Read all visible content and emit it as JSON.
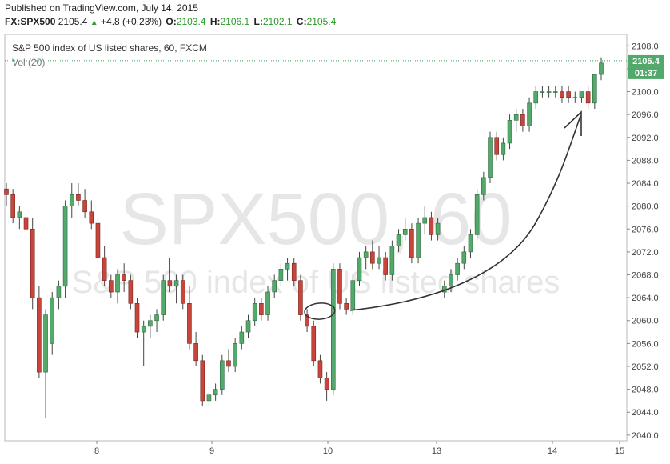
{
  "header": {
    "published": "Published on TradingView.com, July 14, 2015",
    "symbol": "FX:SPX500",
    "last": "2105.4",
    "change": "+4.8 (+0.23%)",
    "open_label": "O:",
    "open": "2103.4",
    "high_label": "H:",
    "high": "2106.1",
    "low_label": "L:",
    "low": "2102.1",
    "close_label": "C:",
    "close": "2105.4"
  },
  "legend": {
    "title": "S&P 500 index of US listed shares, 60, FXCM",
    "volume": "Vol (20)"
  },
  "watermark": {
    "big": "SPX500, 60",
    "small": "S&P 500 index of US listed shares"
  },
  "price_tag": {
    "price": "2105.4",
    "countdown": "01:37"
  },
  "colors": {
    "up": "#53a96c",
    "down": "#c8453b",
    "up_stroke": "#2d6b3f",
    "down_stroke": "#7a2620",
    "axis": "#888888",
    "last_line": "#3a9c5a"
  },
  "chart_data": {
    "type": "candlestick",
    "y_range": [
      2039,
      2110
    ],
    "y_ticks": [
      "2040.0",
      "2044.0",
      "2048.0",
      "2052.0",
      "2056.0",
      "2060.0",
      "2064.0",
      "2068.0",
      "2072.0",
      "2076.0",
      "2080.0",
      "2084.0",
      "2088.0",
      "2092.0",
      "2096.0",
      "2100.0",
      "2104.0",
      "2108.0"
    ],
    "x_ticks": [
      "8",
      "9",
      "10",
      "13",
      "14",
      "15"
    ],
    "annotations": [
      "circle-around-low",
      "curved-up-arrow"
    ],
    "candles": [
      [
        2083,
        2084,
        2080,
        2082
      ],
      [
        2082,
        2083,
        2077,
        2078
      ],
      [
        2078,
        2080,
        2076,
        2079
      ],
      [
        2078,
        2079,
        2075,
        2076
      ],
      [
        2076,
        2078,
        2062,
        2064
      ],
      [
        2064,
        2066,
        2050,
        2051
      ],
      [
        2051,
        2062,
        2043,
        2061
      ],
      [
        2056,
        2065,
        2054,
        2064
      ],
      [
        2064,
        2067,
        2062,
        2066
      ],
      [
        2066,
        2081,
        2064,
        2080
      ],
      [
        2080,
        2084,
        2078,
        2082
      ],
      [
        2082,
        2084,
        2080,
        2081
      ],
      [
        2081,
        2083,
        2078,
        2079
      ],
      [
        2079,
        2081,
        2076,
        2077
      ],
      [
        2077,
        2078,
        2070,
        2071
      ],
      [
        2071,
        2073,
        2066,
        2067
      ],
      [
        2067,
        2068,
        2064,
        2065
      ],
      [
        2065,
        2069,
        2063,
        2068
      ],
      [
        2068,
        2070,
        2065,
        2067
      ],
      [
        2067,
        2068,
        2062,
        2063
      ],
      [
        2063,
        2064,
        2057,
        2058
      ],
      [
        2058,
        2060,
        2052,
        2059
      ],
      [
        2059,
        2061,
        2057,
        2060
      ],
      [
        2060,
        2062,
        2058,
        2061
      ],
      [
        2061,
        2068,
        2060,
        2067
      ],
      [
        2067,
        2071,
        2065,
        2066
      ],
      [
        2066,
        2068,
        2063,
        2067
      ],
      [
        2067,
        2068,
        2062,
        2063
      ],
      [
        2063,
        2066,
        2055,
        2056
      ],
      [
        2056,
        2058,
        2052,
        2053
      ],
      [
        2053,
        2054,
        2045,
        2046
      ],
      [
        2046,
        2048,
        2045,
        2047
      ],
      [
        2047,
        2049,
        2046,
        2048
      ],
      [
        2048,
        2054,
        2047,
        2053
      ],
      [
        2053,
        2055,
        2051,
        2052
      ],
      [
        2052,
        2057,
        2051,
        2056
      ],
      [
        2056,
        2059,
        2055,
        2058
      ],
      [
        2058,
        2061,
        2057,
        2060
      ],
      [
        2060,
        2064,
        2059,
        2063
      ],
      [
        2063,
        2064,
        2060,
        2061
      ],
      [
        2061,
        2066,
        2060,
        2065
      ],
      [
        2065,
        2068,
        2064,
        2067
      ],
      [
        2067,
        2070,
        2066,
        2069
      ],
      [
        2069,
        2071,
        2067,
        2070
      ],
      [
        2070,
        2071,
        2066,
        2067
      ],
      [
        2067,
        2068,
        2060,
        2061
      ],
      [
        2061,
        2062,
        2058,
        2059
      ],
      [
        2059,
        2060,
        2052,
        2053
      ],
      [
        2053,
        2054,
        2049,
        2050
      ],
      [
        2050,
        2051,
        2046,
        2048
      ],
      [
        2048,
        2070,
        2047,
        2069
      ],
      [
        2069,
        2070,
        2062,
        2063
      ],
      [
        2063,
        2064,
        2061,
        2062
      ],
      [
        2062,
        2068,
        2061,
        2067
      ],
      [
        2067,
        2072,
        2066,
        2071
      ],
      [
        2071,
        2073,
        2069,
        2072
      ],
      [
        2072,
        2074,
        2069,
        2070
      ],
      [
        2070,
        2073,
        2069,
        2071
      ],
      [
        2071,
        2072,
        2067,
        2068
      ],
      [
        2068,
        2074,
        2067,
        2073
      ],
      [
        2073,
        2076,
        2072,
        2075
      ],
      [
        2075,
        2078,
        2074,
        2076
      ],
      [
        2076,
        2077,
        2070,
        2071
      ],
      [
        2071,
        2078,
        2070,
        2077
      ],
      [
        2077,
        2080,
        2075,
        2078
      ],
      [
        2078,
        2079,
        2074,
        2075
      ],
      [
        2075,
        2078,
        2074,
        2077
      ],
      [
        2065,
        2067,
        2064,
        2066
      ],
      [
        2066,
        2069,
        2065,
        2068
      ],
      [
        2068,
        2071,
        2067,
        2070
      ],
      [
        2070,
        2073,
        2069,
        2072
      ],
      [
        2072,
        2076,
        2071,
        2075
      ],
      [
        2075,
        2083,
        2074,
        2082
      ],
      [
        2082,
        2086,
        2081,
        2085
      ],
      [
        2085,
        2093,
        2084,
        2092
      ],
      [
        2092,
        2093,
        2088,
        2089
      ],
      [
        2089,
        2092,
        2088,
        2091
      ],
      [
        2091,
        2096,
        2090,
        2095
      ],
      [
        2095,
        2097,
        2093,
        2096
      ],
      [
        2096,
        2097,
        2093,
        2094
      ],
      [
        2094,
        2099,
        2093,
        2098
      ],
      [
        2098,
        2101,
        2097,
        2100
      ],
      [
        2100,
        2101,
        2099,
        2100
      ],
      [
        2100,
        2101,
        2099,
        2100
      ],
      [
        2100,
        2101,
        2099,
        2100
      ],
      [
        2100,
        2101,
        2098,
        2099
      ],
      [
        2100,
        2101,
        2098,
        2099
      ],
      [
        2099,
        2100,
        2098,
        2099
      ],
      [
        2099,
        2100,
        2098,
        2100
      ],
      [
        2100,
        2101,
        2097,
        2098
      ],
      [
        2098,
        2103,
        2097,
        2103
      ],
      [
        2103,
        2106,
        2102,
        2105
      ]
    ]
  }
}
